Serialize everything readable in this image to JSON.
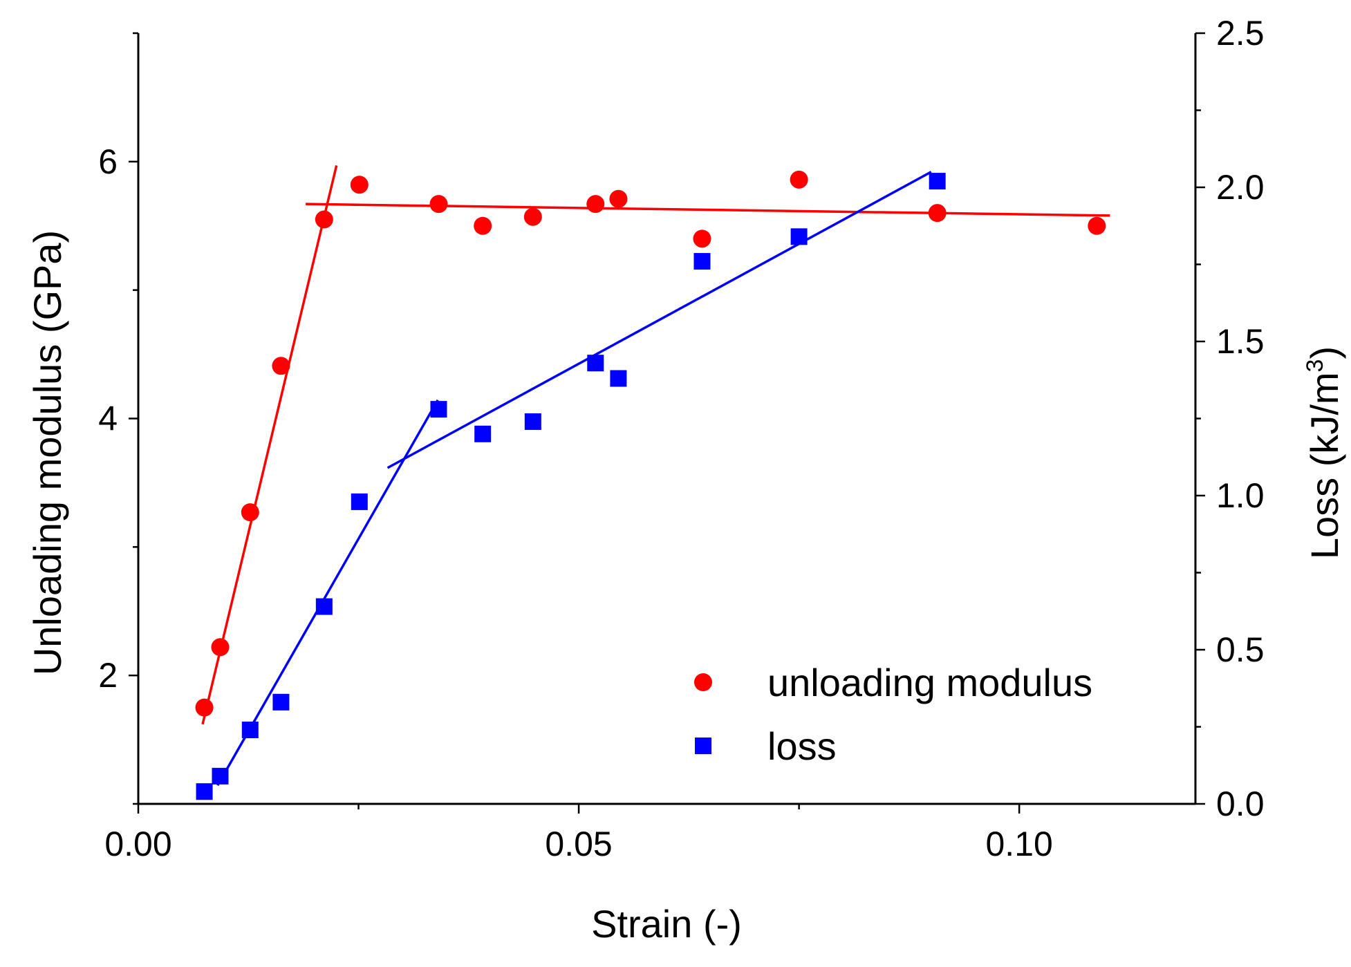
{
  "chart_data": {
    "type": "scatter",
    "xlabel": "Strain (-)",
    "ylabel_left": "Unloading modulus (GPa)",
    "ylabel_right_prefix": "Loss (kJ/m",
    "ylabel_right_sup": "3",
    "ylabel_right_suffix": ")",
    "xlim": [
      0.0,
      0.12
    ],
    "ylim_left": [
      1.0,
      7.0
    ],
    "ylim_right": [
      0.0,
      2.5
    ],
    "x_ticks": [
      {
        "value": 0.0,
        "label": "0.00"
      },
      {
        "value": 0.05,
        "label": "0.05"
      },
      {
        "value": 0.1,
        "label": "0.10"
      }
    ],
    "y_left_ticks": [
      {
        "value": 2,
        "label": "2"
      },
      {
        "value": 4,
        "label": "4"
      },
      {
        "value": 6,
        "label": "6"
      }
    ],
    "y_right_ticks": [
      {
        "value": 0.0,
        "label": "0.0"
      },
      {
        "value": 0.5,
        "label": "0.5"
      },
      {
        "value": 1.0,
        "label": "1.0"
      },
      {
        "value": 1.5,
        "label": "1.5"
      },
      {
        "value": 2.0,
        "label": "2.0"
      },
      {
        "value": 2.5,
        "label": "2.5"
      }
    ],
    "series": [
      {
        "name": "unloading modulus",
        "axis": "left",
        "marker": "circle",
        "color": "#ff0000",
        "points": [
          [
            0.0075,
            1.75
          ],
          [
            0.0093,
            2.22
          ],
          [
            0.0127,
            3.27
          ],
          [
            0.0162,
            4.41
          ],
          [
            0.0211,
            5.55
          ],
          [
            0.0251,
            5.82
          ],
          [
            0.0341,
            5.67
          ],
          [
            0.0391,
            5.5
          ],
          [
            0.0448,
            5.57
          ],
          [
            0.0519,
            5.67
          ],
          [
            0.0545,
            5.71
          ],
          [
            0.064,
            5.4
          ],
          [
            0.075,
            5.86
          ],
          [
            0.0907,
            5.6
          ],
          [
            0.1088,
            5.5
          ]
        ],
        "fit_lines": [
          [
            [
              0.0073,
              1.62
            ],
            [
              0.0225,
              5.97
            ]
          ],
          [
            [
              0.019,
              5.67
            ],
            [
              0.1103,
              5.58
            ]
          ]
        ]
      },
      {
        "name": "loss",
        "axis": "right",
        "marker": "square",
        "color": "#0000ff",
        "points": [
          [
            0.0075,
            0.04
          ],
          [
            0.0093,
            0.09
          ],
          [
            0.0127,
            0.24
          ],
          [
            0.0162,
            0.33
          ],
          [
            0.0211,
            0.64
          ],
          [
            0.0251,
            0.98
          ],
          [
            0.0341,
            1.28
          ],
          [
            0.0391,
            1.2
          ],
          [
            0.0448,
            1.24
          ],
          [
            0.0519,
            1.43
          ],
          [
            0.0545,
            1.38
          ],
          [
            0.064,
            1.76
          ],
          [
            0.075,
            1.84
          ],
          [
            0.0907,
            2.02
          ]
        ],
        "fit_lines": [
          [
            [
              0.009,
              0.06
            ],
            [
              0.034,
              1.31
            ]
          ],
          [
            [
              0.0283,
              1.09
            ],
            [
              0.09,
              2.05
            ]
          ]
        ]
      }
    ],
    "legend": {
      "position": "bottom-right",
      "entries": [
        {
          "label": "unloading modulus",
          "marker": "circle",
          "color": "#ff0000"
        },
        {
          "label": "loss",
          "marker": "square",
          "color": "#0000ff"
        }
      ]
    }
  }
}
